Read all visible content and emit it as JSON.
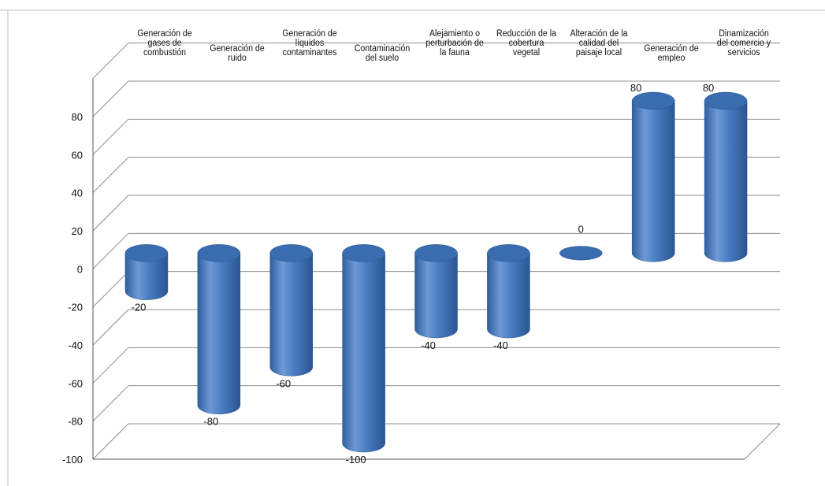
{
  "chart_data": {
    "type": "bar",
    "style": "3d-cylinder",
    "categories": [
      "Generación de gases de combustión",
      "Generación de ruido",
      "Generación de líquidos contaminantes",
      "Contaminación del suelo",
      "Alejamiento o perturbación de la fauna",
      "Reducción de la cobertura vegetal",
      "Alteración de la calidad del paisaje local",
      "Generación de empleo",
      "Dinamización del comercio y servicios"
    ],
    "values": [
      -20,
      -80,
      -60,
      -100,
      -40,
      -40,
      0,
      80,
      80
    ],
    "data_labels": [
      "-20",
      "-80",
      "-60",
      "-100",
      "-40",
      "-40",
      "0",
      "80",
      "80"
    ],
    "yticks": [
      "80",
      "60",
      "40",
      "20",
      "0",
      "-20",
      "-40",
      "-60",
      "-80",
      "-100"
    ],
    "ylim": [
      -100,
      80
    ],
    "grid": true,
    "legend": "none",
    "title": "",
    "xlabel": "",
    "ylabel": "",
    "colors": {
      "bar_body": "#4a7ec2",
      "bar_light": "#6e9ad6",
      "bar_dark": "#2f5f9e",
      "bar_top": "#3a6db0",
      "grid": "#8c8c8c",
      "axis": "#555555"
    }
  }
}
